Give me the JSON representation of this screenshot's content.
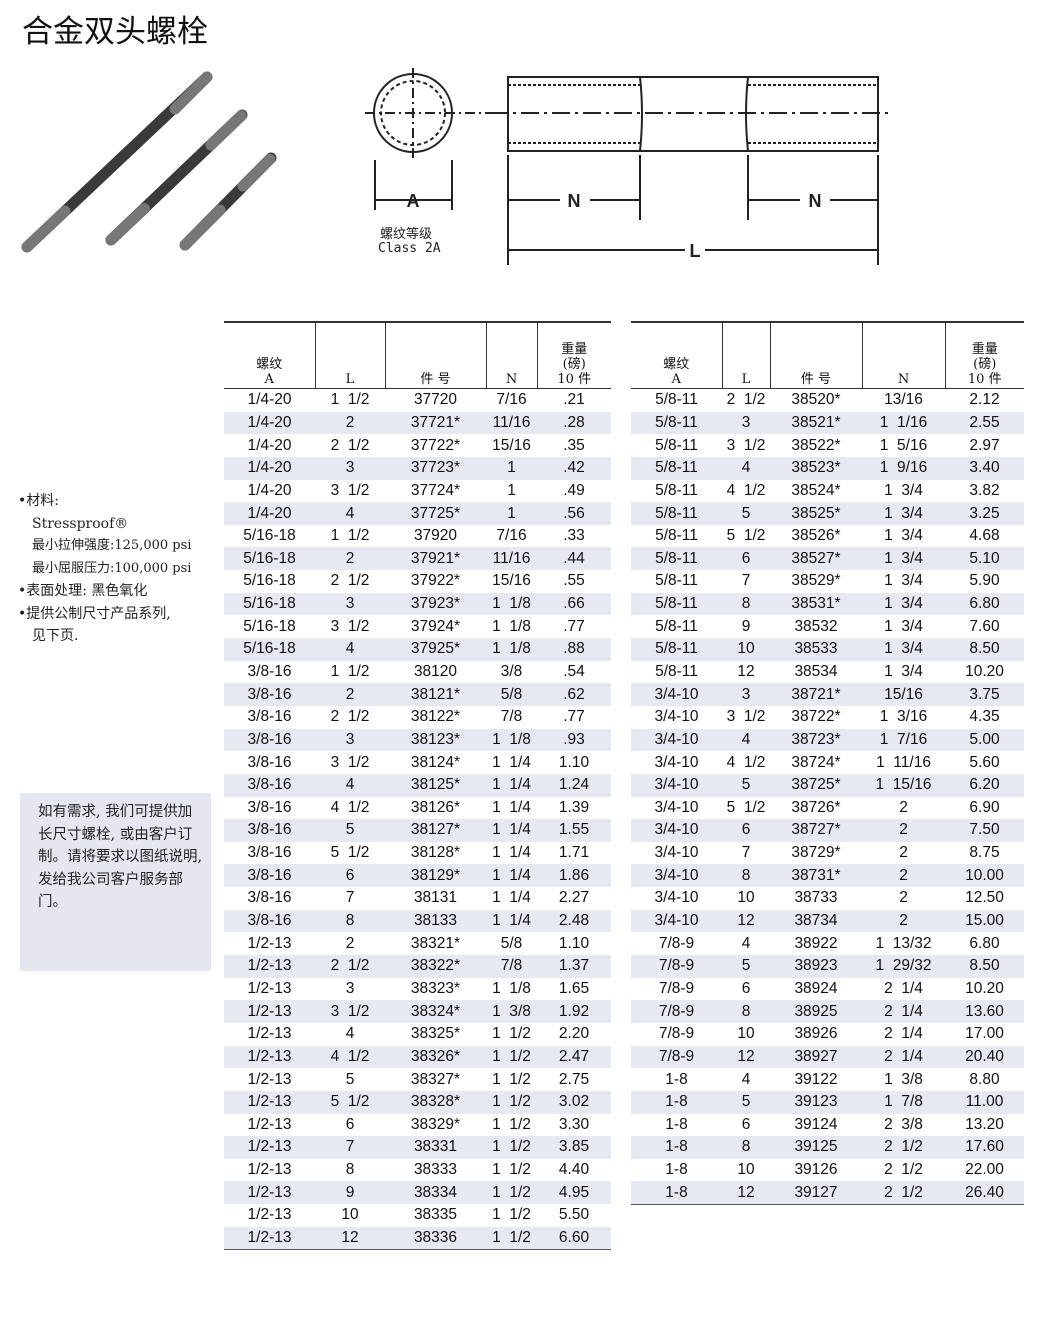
{
  "title": "合金双头螺栓",
  "diagram": {
    "label_a": "A",
    "label_n": "N",
    "label_l": "L",
    "thread_class_cn": "螺纹等级",
    "thread_class": "Class 2A"
  },
  "side": {
    "material_label": "•材料:",
    "material": "Stressproof®",
    "tensile": "最小拉伸强度:125,000 psi",
    "yield": "最小屈服压力:100,000 psi",
    "finish": "•表面处理: 黑色氧化",
    "metric1": "•提供公制尺寸产品系列,",
    "metric2": "见下页."
  },
  "note": "如有需求, 我们可提供加长尺寸螺栓, 或由客户订制。请将要求以图纸说明, 发给我公司客户服务部门。",
  "headers": {
    "thread": "螺纹",
    "a": "A",
    "l": "L",
    "part": "件 号",
    "n": "N",
    "weight1": "重量",
    "weight2": "(磅)",
    "weight3": "10 件"
  },
  "table_left": [
    [
      "1/4-20",
      "1  1/2",
      "37720",
      "7/16",
      ".21"
    ],
    [
      "1/4-20",
      "2",
      "37721*",
      "11/16",
      ".28"
    ],
    [
      "1/4-20",
      "2  1/2",
      "37722*",
      "15/16",
      ".35"
    ],
    [
      "1/4-20",
      "3",
      "37723*",
      "1",
      ".42"
    ],
    [
      "1/4-20",
      "3  1/2",
      "37724*",
      "1",
      ".49"
    ],
    [
      "1/4-20",
      "4",
      "37725*",
      "1",
      ".56"
    ],
    [
      "5/16-18",
      "1  1/2",
      "37920",
      "7/16",
      ".33"
    ],
    [
      "5/16-18",
      "2",
      "37921*",
      "11/16",
      ".44"
    ],
    [
      "5/16-18",
      "2  1/2",
      "37922*",
      "15/16",
      ".55"
    ],
    [
      "5/16-18",
      "3",
      "37923*",
      "1  1/8",
      ".66"
    ],
    [
      "5/16-18",
      "3  1/2",
      "37924*",
      "1  1/8",
      ".77"
    ],
    [
      "5/16-18",
      "4",
      "37925*",
      "1  1/8",
      ".88"
    ],
    [
      "3/8-16",
      "1  1/2",
      "38120",
      "3/8",
      ".54"
    ],
    [
      "3/8-16",
      "2",
      "38121*",
      "5/8",
      ".62"
    ],
    [
      "3/8-16",
      "2  1/2",
      "38122*",
      "7/8",
      ".77"
    ],
    [
      "3/8-16",
      "3",
      "38123*",
      "1  1/8",
      ".93"
    ],
    [
      "3/8-16",
      "3  1/2",
      "38124*",
      "1  1/4",
      "1.10"
    ],
    [
      "3/8-16",
      "4",
      "38125*",
      "1  1/4",
      "1.24"
    ],
    [
      "3/8-16",
      "4  1/2",
      "38126*",
      "1  1/4",
      "1.39"
    ],
    [
      "3/8-16",
      "5",
      "38127*",
      "1  1/4",
      "1.55"
    ],
    [
      "3/8-16",
      "5  1/2",
      "38128*",
      "1  1/4",
      "1.71"
    ],
    [
      "3/8-16",
      "6",
      "38129*",
      "1  1/4",
      "1.86"
    ],
    [
      "3/8-16",
      "7",
      "38131",
      "1  1/4",
      "2.27"
    ],
    [
      "3/8-16",
      "8",
      "38133",
      "1  1/4",
      "2.48"
    ],
    [
      "1/2-13",
      "2",
      "38321*",
      "5/8",
      "1.10"
    ],
    [
      "1/2-13",
      "2  1/2",
      "38322*",
      "7/8",
      "1.37"
    ],
    [
      "1/2-13",
      "3",
      "38323*",
      "1  1/8",
      "1.65"
    ],
    [
      "1/2-13",
      "3  1/2",
      "38324*",
      "1  3/8",
      "1.92"
    ],
    [
      "1/2-13",
      "4",
      "38325*",
      "1  1/2",
      "2.20"
    ],
    [
      "1/2-13",
      "4  1/2",
      "38326*",
      "1  1/2",
      "2.47"
    ],
    [
      "1/2-13",
      "5",
      "38327*",
      "1  1/2",
      "2.75"
    ],
    [
      "1/2-13",
      "5  1/2",
      "38328*",
      "1  1/2",
      "3.02"
    ],
    [
      "1/2-13",
      "6",
      "38329*",
      "1  1/2",
      "3.30"
    ],
    [
      "1/2-13",
      "7",
      "38331",
      "1  1/2",
      "3.85"
    ],
    [
      "1/2-13",
      "8",
      "38333",
      "1  1/2",
      "4.40"
    ],
    [
      "1/2-13",
      "9",
      "38334",
      "1  1/2",
      "4.95"
    ],
    [
      "1/2-13",
      "10",
      "38335",
      "1  1/2",
      "5.50"
    ],
    [
      "1/2-13",
      "12",
      "38336",
      "1  1/2",
      "6.60"
    ]
  ],
  "table_right": [
    [
      "5/8-11",
      "2  1/2",
      "38520*",
      "13/16",
      "2.12"
    ],
    [
      "5/8-11",
      "3",
      "38521*",
      "1  1/16",
      "2.55"
    ],
    [
      "5/8-11",
      "3  1/2",
      "38522*",
      "1  5/16",
      "2.97"
    ],
    [
      "5/8-11",
      "4",
      "38523*",
      "1  9/16",
      "3.40"
    ],
    [
      "5/8-11",
      "4  1/2",
      "38524*",
      "1  3/4",
      "3.82"
    ],
    [
      "5/8-11",
      "5",
      "38525*",
      "1  3/4",
      "3.25"
    ],
    [
      "5/8-11",
      "5  1/2",
      "38526*",
      "1  3/4",
      "4.68"
    ],
    [
      "5/8-11",
      "6",
      "38527*",
      "1  3/4",
      "5.10"
    ],
    [
      "5/8-11",
      "7",
      "38529*",
      "1  3/4",
      "5.90"
    ],
    [
      "5/8-11",
      "8",
      "38531*",
      "1  3/4",
      "6.80"
    ],
    [
      "5/8-11",
      "9",
      "38532",
      "1  3/4",
      "7.60"
    ],
    [
      "5/8-11",
      "10",
      "38533",
      "1  3/4",
      "8.50"
    ],
    [
      "5/8-11",
      "12",
      "38534",
      "1  3/4",
      "10.20"
    ],
    [
      "3/4-10",
      "3",
      "38721*",
      "15/16",
      "3.75"
    ],
    [
      "3/4-10",
      "3  1/2",
      "38722*",
      "1  3/16",
      "4.35"
    ],
    [
      "3/4-10",
      "4",
      "38723*",
      "1  7/16",
      "5.00"
    ],
    [
      "3/4-10",
      "4  1/2",
      "38724*",
      "1  11/16",
      "5.60"
    ],
    [
      "3/4-10",
      "5",
      "38725*",
      "1  15/16",
      "6.20"
    ],
    [
      "3/4-10",
      "5  1/2",
      "38726*",
      "2",
      "6.90"
    ],
    [
      "3/4-10",
      "6",
      "38727*",
      "2",
      "7.50"
    ],
    [
      "3/4-10",
      "7",
      "38729*",
      "2",
      "8.75"
    ],
    [
      "3/4-10",
      "8",
      "38731*",
      "2",
      "10.00"
    ],
    [
      "3/4-10",
      "10",
      "38733",
      "2",
      "12.50"
    ],
    [
      "3/4-10",
      "12",
      "38734",
      "2",
      "15.00"
    ],
    [
      "7/8-9",
      "4",
      "38922",
      "1  13/32",
      "6.80"
    ],
    [
      "7/8-9",
      "5",
      "38923",
      "1  29/32",
      "8.50"
    ],
    [
      "7/8-9",
      "6",
      "38924",
      "2  1/4",
      "10.20"
    ],
    [
      "7/8-9",
      "8",
      "38925",
      "2  1/4",
      "13.60"
    ],
    [
      "7/8-9",
      "10",
      "38926",
      "2  1/4",
      "17.00"
    ],
    [
      "7/8-9",
      "12",
      "38927",
      "2  1/4",
      "20.40"
    ],
    [
      "1-8",
      "4",
      "39122",
      "1  3/8",
      "8.80"
    ],
    [
      "1-8",
      "5",
      "39123",
      "1  7/8",
      "11.00"
    ],
    [
      "1-8",
      "6",
      "39124",
      "2  3/8",
      "13.20"
    ],
    [
      "1-8",
      "8",
      "39125",
      "2  1/2",
      "17.60"
    ],
    [
      "1-8",
      "10",
      "39126",
      "2  1/2",
      "22.00"
    ],
    [
      "1-8",
      "12",
      "39127",
      "2  1/2",
      "26.40"
    ]
  ]
}
